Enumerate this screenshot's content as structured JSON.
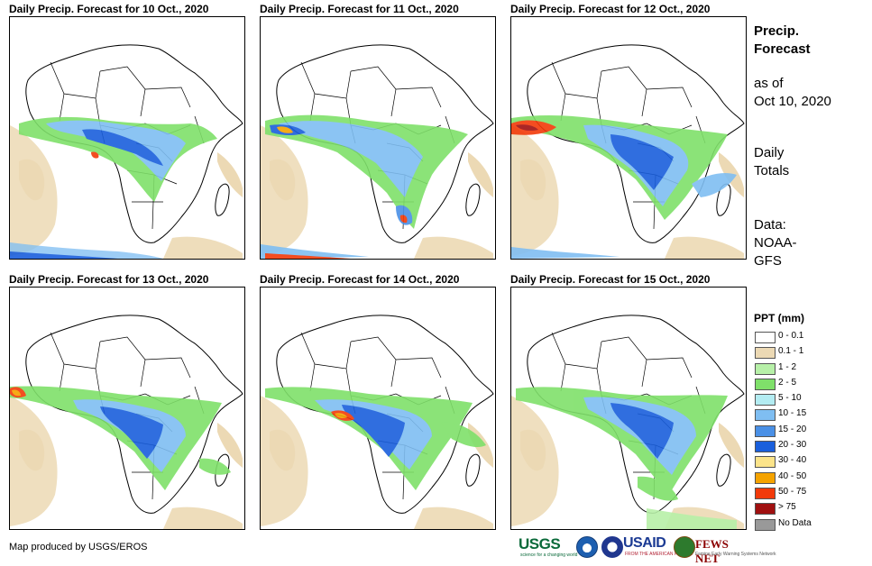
{
  "panels": [
    {
      "title": "Daily Precip. Forecast for 10 Oct., 2020"
    },
    {
      "title": "Daily Precip. Forecast for 11 Oct., 2020"
    },
    {
      "title": "Daily Precip. Forecast for 12 Oct., 2020"
    },
    {
      "title": "Daily Precip. Forecast for 13 Oct., 2020"
    },
    {
      "title": "Daily Precip. Forecast for 14 Oct., 2020"
    },
    {
      "title": "Daily Precip. Forecast for 15 Oct., 2020"
    }
  ],
  "info": {
    "title_line1": "Precip.",
    "title_line2": "Forecast",
    "asof_line1": "as of",
    "asof_line2": "Oct 10, 2020",
    "totals_line1": "Daily",
    "totals_line2": "Totals",
    "data_line1": "Data:",
    "data_line2": "NOAA-",
    "data_line3": "GFS"
  },
  "legend": {
    "title": "PPT (mm)",
    "items": [
      {
        "label": "0 - 0.1",
        "color": "#ffffff"
      },
      {
        "label": "0.1 - 1",
        "color": "#ecd9b4"
      },
      {
        "label": "1 - 2",
        "color": "#b7f0a8"
      },
      {
        "label": "2 - 5",
        "color": "#7fe06a"
      },
      {
        "label": "5 - 10",
        "color": "#b3ecf2"
      },
      {
        "label": "10 - 15",
        "color": "#7fbef2"
      },
      {
        "label": "15 - 20",
        "color": "#4a90e6"
      },
      {
        "label": "20 - 30",
        "color": "#1a5fdc"
      },
      {
        "label": "30 - 40",
        "color": "#fce48a"
      },
      {
        "label": "40 - 50",
        "color": "#f5a300"
      },
      {
        "label": "50 - 75",
        "color": "#f23a0a"
      },
      {
        "label": "> 75",
        "color": "#a01010"
      },
      {
        "label": "No Data",
        "color": "#999999"
      }
    ]
  },
  "footer": {
    "credit": "Map produced by USGS/EROS"
  },
  "logos": {
    "usgs": "USGS",
    "usgs_tagline": "science for a changing world",
    "usaid": "USAID",
    "usaid_tagline": "FROM THE AMERICAN PEOPLE",
    "fews": "FEWS NET",
    "fews_tagline": "Famine Early Warning Systems Network"
  }
}
